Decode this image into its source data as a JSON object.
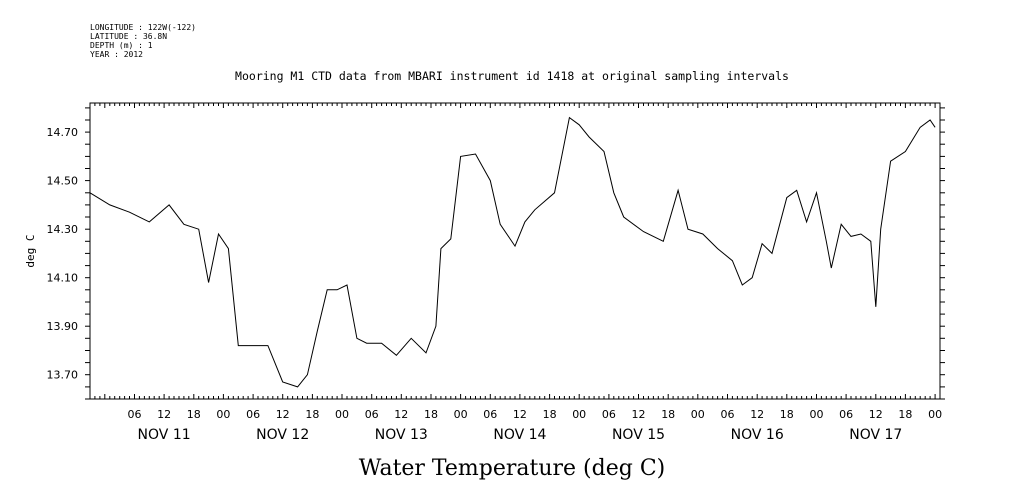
{
  "header": {
    "meta_lines": [
      "LONGITUDE : 122W(-122)",
      "LATITUDE : 36.8N",
      "DEPTH (m) : 1",
      "YEAR : 2012"
    ]
  },
  "chart_data": {
    "type": "line",
    "title": "Mooring M1 CTD data from MBARI instrument id 1418 at original sampling intervals",
    "xlabel": "Water Temperature (deg C)",
    "ylabel": "deg C",
    "xlim": [
      "2012-11-10T21:00",
      "2012-11-18T01:00"
    ],
    "ylim": [
      13.6,
      14.82
    ],
    "y_ticks": [
      "14.70",
      "14.50",
      "14.30",
      "14.10",
      "13.90",
      "13.70"
    ],
    "x_hour_labels": [
      "06",
      "12",
      "18",
      "00",
      "06",
      "12",
      "18",
      "00",
      "06",
      "12",
      "18",
      "00",
      "06",
      "12",
      "18",
      "00",
      "06",
      "12",
      "18",
      "00",
      "06",
      "12",
      "18",
      "00",
      "06",
      "12",
      "18",
      "00"
    ],
    "x_day_labels": [
      "NOV 11",
      "NOV 12",
      "NOV 13",
      "NOV 14",
      "NOV 15",
      "NOV 16",
      "NOV 17"
    ],
    "grid": false,
    "series": [
      {
        "x": [
          "2012-11-10T21:00",
          "2012-11-11T01:00",
          "2012-11-11T05:00",
          "2012-11-11T09:00",
          "2012-11-11T13:00",
          "2012-11-11T16:00",
          "2012-11-11T19:00",
          "2012-11-11T21:00",
          "2012-11-11T23:00",
          "2012-11-12T01:00",
          "2012-11-12T03:00",
          "2012-11-12T06:00",
          "2012-11-12T09:00",
          "2012-11-12T12:00",
          "2012-11-12T15:00",
          "2012-11-12T17:00",
          "2012-11-12T19:00",
          "2012-11-12T21:00",
          "2012-11-12T23:00",
          "2012-11-13T01:00",
          "2012-11-13T03:00",
          "2012-11-13T05:00",
          "2012-11-13T08:00",
          "2012-11-13T11:00",
          "2012-11-13T14:00",
          "2012-11-13T17:00",
          "2012-11-13T19:00",
          "2012-11-13T20:00",
          "2012-11-13T22:00",
          "2012-11-14T00:00",
          "2012-11-14T03:00",
          "2012-11-14T06:00",
          "2012-11-14T08:00",
          "2012-11-14T11:00",
          "2012-11-14T13:00",
          "2012-11-14T15:00",
          "2012-11-14T19:00",
          "2012-11-14T22:00",
          "2012-11-15T00:00",
          "2012-11-15T02:00",
          "2012-11-15T05:00",
          "2012-11-15T07:00",
          "2012-11-15T09:00",
          "2012-11-15T13:00",
          "2012-11-15T17:00",
          "2012-11-15T20:00",
          "2012-11-15T22:00",
          "2012-11-16T01:00",
          "2012-11-16T04:00",
          "2012-11-16T07:00",
          "2012-11-16T09:00",
          "2012-11-16T11:00",
          "2012-11-16T13:00",
          "2012-11-16T15:00",
          "2012-11-16T18:00",
          "2012-11-16T20:00",
          "2012-11-16T22:00",
          "2012-11-17T00:00",
          "2012-11-17T02:00",
          "2012-11-17T03:00",
          "2012-11-17T05:00",
          "2012-11-17T07:00",
          "2012-11-17T09:00",
          "2012-11-17T11:00",
          "2012-11-17T12:00",
          "2012-11-17T13:00",
          "2012-11-17T15:00",
          "2012-11-17T18:00",
          "2012-11-17T21:00",
          "2012-11-17T23:00",
          "2012-11-18T00:00"
        ],
        "y": [
          14.45,
          14.4,
          14.37,
          14.33,
          14.4,
          14.32,
          14.3,
          14.08,
          14.28,
          14.22,
          13.82,
          13.82,
          13.82,
          13.67,
          13.65,
          13.7,
          13.88,
          14.05,
          14.05,
          14.07,
          13.85,
          13.83,
          13.83,
          13.78,
          13.85,
          13.79,
          13.9,
          14.22,
          14.26,
          14.6,
          14.61,
          14.5,
          14.32,
          14.23,
          14.33,
          14.38,
          14.45,
          14.76,
          14.73,
          14.68,
          14.62,
          14.45,
          14.35,
          14.29,
          14.25,
          14.46,
          14.3,
          14.28,
          14.22,
          14.17,
          14.07,
          14.1,
          14.24,
          14.2,
          14.43,
          14.46,
          14.33,
          14.45,
          14.25,
          14.14,
          14.32,
          14.27,
          14.28,
          14.25,
          13.98,
          14.3,
          14.58,
          14.62,
          14.72,
          14.75,
          14.72
        ]
      }
    ]
  }
}
